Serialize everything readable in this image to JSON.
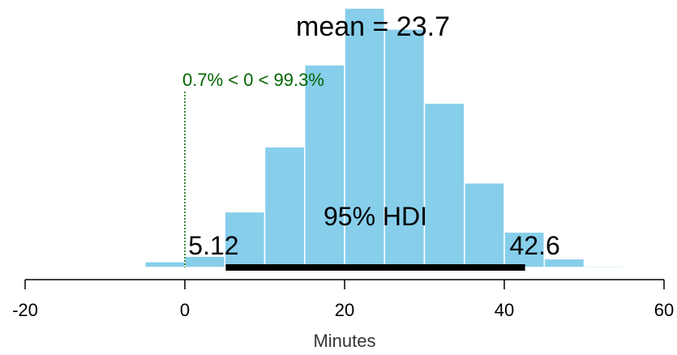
{
  "chart_data": {
    "type": "bar",
    "xlabel": "Minutes",
    "xlim": [
      -20,
      60
    ],
    "x_ticks": [
      "-20",
      "0",
      "20",
      "40",
      "60"
    ],
    "x_tick_values": [
      -20,
      0,
      20,
      40,
      60
    ],
    "bin_width": 5,
    "bins": [
      {
        "start": -5,
        "end": 0,
        "density": 0.0016
      },
      {
        "start": 0,
        "end": 5,
        "density": 0.0031
      },
      {
        "start": 5,
        "end": 10,
        "density": 0.0154
      },
      {
        "start": 10,
        "end": 15,
        "density": 0.0334
      },
      {
        "start": 15,
        "end": 20,
        "density": 0.0561
      },
      {
        "start": 20,
        "end": 25,
        "density": 0.0718
      },
      {
        "start": 25,
        "end": 30,
        "density": 0.066
      },
      {
        "start": 30,
        "end": 35,
        "density": 0.0455
      },
      {
        "start": 35,
        "end": 40,
        "density": 0.0234
      },
      {
        "start": 40,
        "end": 45,
        "density": 0.0098
      },
      {
        "start": 45,
        "end": 50,
        "density": 0.0024
      },
      {
        "start": 50,
        "end": 55,
        "density": 0.0004
      }
    ],
    "ylim": [
      0,
      0.0718
    ],
    "mean_label": "mean = 23.7",
    "comparison": {
      "value": 0,
      "label": "0.7% < 0 < 99.3%",
      "color": "#006400"
    },
    "hdi": {
      "label": "95% HDI",
      "low": 5.12,
      "high": 42.6,
      "low_label": "5.12",
      "high_label": "42.6",
      "color": "#000000"
    },
    "bar_color": "#87CEEB",
    "bar_edge_color": "#ffffff"
  }
}
